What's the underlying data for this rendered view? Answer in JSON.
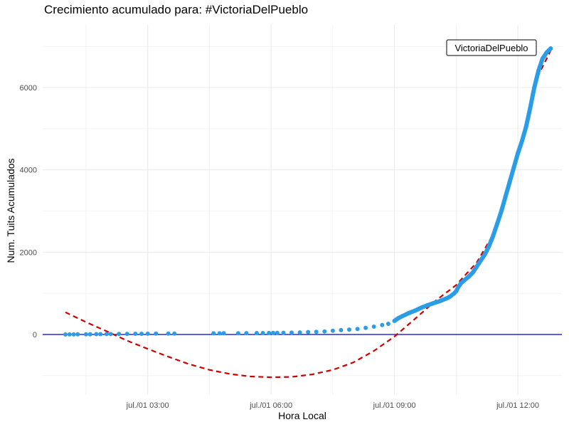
{
  "chart_data": {
    "type": "scatter",
    "title": "Crecimiento acumulado para: #VictoriaDelPueblo",
    "xlabel": "Hora Local",
    "ylabel": "Num. Tuits Acumulados",
    "x_unit": "hours",
    "xlim": [
      0.2,
      12.9
    ],
    "ylim": [
      -1000,
      7000
    ],
    "x_ticks": [
      {
        "value": 3,
        "label": "jul./01 03:00"
      },
      {
        "value": 6,
        "label": "jul./01 06:00"
      },
      {
        "value": 9,
        "label": "jul./01 09:00"
      },
      {
        "value": 12,
        "label": "jul./01 12:00"
      }
    ],
    "y_ticks": [
      {
        "value": 0,
        "label": "0"
      },
      {
        "value": 2000,
        "label": "2000"
      },
      {
        "value": 4000,
        "label": "4000"
      },
      {
        "value": 6000,
        "label": "6000"
      }
    ],
    "grid": true,
    "reference_line": {
      "y": 0,
      "color": "#0000cc"
    },
    "series": [
      {
        "name": "VictoriaDelPueblo",
        "color": "#2b9de6",
        "points": [
          [
            1.0,
            0
          ],
          [
            1.1,
            1
          ],
          [
            1.2,
            2
          ],
          [
            1.3,
            3
          ],
          [
            1.5,
            5
          ],
          [
            1.6,
            6
          ],
          [
            1.75,
            8
          ],
          [
            1.85,
            9
          ],
          [
            2.0,
            10
          ],
          [
            2.1,
            11
          ],
          [
            2.3,
            13
          ],
          [
            2.5,
            15
          ],
          [
            2.7,
            17
          ],
          [
            2.85,
            18
          ],
          [
            3.0,
            19
          ],
          [
            3.2,
            20
          ],
          [
            3.5,
            22
          ],
          [
            3.65,
            23
          ],
          [
            4.6,
            27
          ],
          [
            4.75,
            28
          ],
          [
            4.85,
            29
          ],
          [
            5.2,
            31
          ],
          [
            5.4,
            32
          ],
          [
            5.65,
            34
          ],
          [
            5.8,
            35
          ],
          [
            5.95,
            37
          ],
          [
            6.05,
            38
          ],
          [
            6.15,
            40
          ],
          [
            6.3,
            42
          ],
          [
            6.5,
            45
          ],
          [
            6.7,
            50
          ],
          [
            6.9,
            58
          ],
          [
            7.1,
            65
          ],
          [
            7.3,
            75
          ],
          [
            7.5,
            90
          ],
          [
            7.7,
            105
          ],
          [
            7.9,
            120
          ],
          [
            8.1,
            135
          ],
          [
            8.3,
            160
          ],
          [
            8.5,
            190
          ],
          [
            8.7,
            230
          ],
          [
            8.85,
            260
          ],
          [
            9.0,
            330
          ],
          [
            9.1,
            400
          ],
          [
            9.2,
            450
          ],
          [
            9.35,
            520
          ],
          [
            9.5,
            580
          ],
          [
            9.65,
            650
          ],
          [
            9.8,
            710
          ],
          [
            9.95,
            760
          ],
          [
            10.1,
            810
          ],
          [
            10.25,
            870
          ],
          [
            10.35,
            920
          ],
          [
            10.45,
            1000
          ],
          [
            10.5,
            1050
          ],
          [
            10.55,
            1150
          ],
          [
            10.62,
            1250
          ],
          [
            10.7,
            1320
          ],
          [
            10.8,
            1400
          ],
          [
            10.9,
            1500
          ],
          [
            11.0,
            1650
          ],
          [
            11.1,
            1800
          ],
          [
            11.2,
            1950
          ],
          [
            11.3,
            2150
          ],
          [
            11.4,
            2400
          ],
          [
            11.5,
            2700
          ],
          [
            11.6,
            3000
          ],
          [
            11.7,
            3350
          ],
          [
            11.8,
            3700
          ],
          [
            11.9,
            4050
          ],
          [
            12.0,
            4400
          ],
          [
            12.1,
            4700
          ],
          [
            12.2,
            5050
          ],
          [
            12.3,
            5500
          ],
          [
            12.4,
            6000
          ],
          [
            12.5,
            6400
          ],
          [
            12.6,
            6700
          ],
          [
            12.7,
            6850
          ],
          [
            12.8,
            6950
          ]
        ]
      },
      {
        "name": "",
        "style": "dashed",
        "color": "#cc0000",
        "points": [
          [
            1.0,
            540
          ],
          [
            1.5,
            300
          ],
          [
            2.0,
            80
          ],
          [
            2.5,
            -150
          ],
          [
            3.0,
            -350
          ],
          [
            3.5,
            -540
          ],
          [
            4.0,
            -720
          ],
          [
            4.5,
            -860
          ],
          [
            5.0,
            -960
          ],
          [
            5.5,
            -1020
          ],
          [
            6.0,
            -1040
          ],
          [
            6.5,
            -1030
          ],
          [
            7.0,
            -970
          ],
          [
            7.5,
            -860
          ],
          [
            8.0,
            -680
          ],
          [
            8.5,
            -400
          ],
          [
            9.0,
            -50
          ],
          [
            9.5,
            380
          ],
          [
            10.0,
            820
          ],
          [
            10.5,
            1200
          ],
          [
            11.0,
            1750
          ],
          [
            11.5,
            2600
          ],
          [
            12.0,
            4400
          ],
          [
            12.5,
            6300
          ],
          [
            12.8,
            6900
          ]
        ]
      }
    ],
    "annotations": [
      {
        "text": "VictoriaDelPueblo",
        "x": 12.8,
        "y": 6950
      }
    ]
  }
}
